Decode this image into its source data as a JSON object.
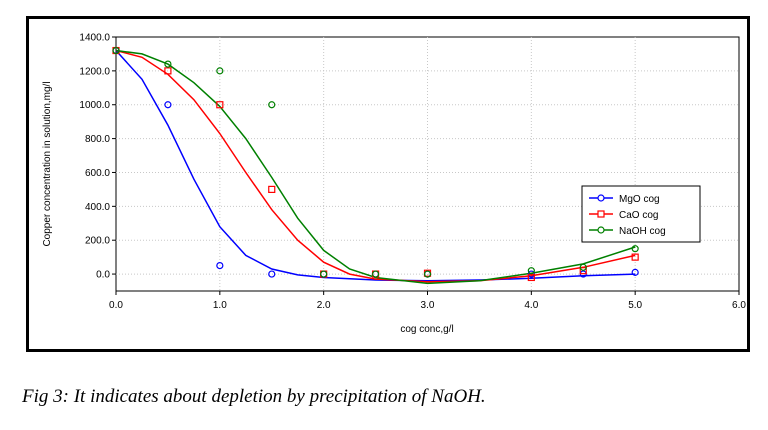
{
  "caption": "Fig  3: It indicates about depletion by precipitation of NaOH.",
  "chart_data": {
    "type": "scatter",
    "xlabel": "cog conc,g/l",
    "ylabel": "Copper concentration in solution,mg/l",
    "xlim": [
      0,
      6
    ],
    "ylim": [
      -100,
      1400
    ],
    "xticks": [
      "0.0",
      "1.0",
      "2.0",
      "3.0",
      "4.0",
      "5.0",
      "6.0"
    ],
    "yticks": [
      "0.0",
      "200.0",
      "400.0",
      "600.0",
      "800.0",
      "1000.0",
      "1200.0",
      "1400.0"
    ],
    "grid": true,
    "legend_position": "right",
    "series": [
      {
        "name": "MgO cog",
        "color": "#0000ff",
        "marker": "circle",
        "points": [
          [
            0,
            1320
          ],
          [
            0.5,
            1000
          ],
          [
            1.0,
            50
          ],
          [
            1.5,
            0
          ],
          [
            2.0,
            0
          ],
          [
            2.5,
            0
          ],
          [
            3.0,
            0
          ],
          [
            4.0,
            0
          ],
          [
            4.5,
            0
          ],
          [
            5.0,
            10
          ]
        ],
        "fit": [
          [
            0,
            1320
          ],
          [
            0.25,
            1150
          ],
          [
            0.5,
            880
          ],
          [
            0.75,
            560
          ],
          [
            1.0,
            280
          ],
          [
            1.25,
            110
          ],
          [
            1.5,
            30
          ],
          [
            1.75,
            -5
          ],
          [
            2.0,
            -20
          ],
          [
            2.5,
            -35
          ],
          [
            3.0,
            -40
          ],
          [
            3.5,
            -35
          ],
          [
            4.0,
            -25
          ],
          [
            4.5,
            -10
          ],
          [
            5.0,
            0
          ]
        ]
      },
      {
        "name": "CaO cog",
        "color": "#ff0000",
        "marker": "square",
        "points": [
          [
            0,
            1320
          ],
          [
            0.5,
            1200
          ],
          [
            1.0,
            1000
          ],
          [
            1.5,
            500
          ],
          [
            2.0,
            0
          ],
          [
            2.5,
            0
          ],
          [
            3.0,
            5
          ],
          [
            4.0,
            -20
          ],
          [
            4.5,
            20
          ],
          [
            5.0,
            100
          ]
        ],
        "fit": [
          [
            0,
            1320
          ],
          [
            0.25,
            1280
          ],
          [
            0.5,
            1180
          ],
          [
            0.75,
            1030
          ],
          [
            1.0,
            830
          ],
          [
            1.25,
            600
          ],
          [
            1.5,
            380
          ],
          [
            1.75,
            200
          ],
          [
            2.0,
            70
          ],
          [
            2.25,
            0
          ],
          [
            2.5,
            -30
          ],
          [
            3.0,
            -45
          ],
          [
            3.5,
            -40
          ],
          [
            4.0,
            -10
          ],
          [
            4.5,
            40
          ],
          [
            5.0,
            110
          ]
        ]
      },
      {
        "name": "NaOH cog",
        "color": "#008000",
        "marker": "circle",
        "points": [
          [
            0,
            1320
          ],
          [
            0.5,
            1240
          ],
          [
            1.0,
            1200
          ],
          [
            1.5,
            1000
          ],
          [
            2.0,
            0
          ],
          [
            2.5,
            0
          ],
          [
            3.0,
            0
          ],
          [
            4.0,
            20
          ],
          [
            4.5,
            40
          ],
          [
            5.0,
            150
          ]
        ],
        "fit": [
          [
            0,
            1320
          ],
          [
            0.25,
            1300
          ],
          [
            0.5,
            1240
          ],
          [
            0.75,
            1130
          ],
          [
            1.0,
            990
          ],
          [
            1.25,
            800
          ],
          [
            1.5,
            570
          ],
          [
            1.75,
            330
          ],
          [
            2.0,
            140
          ],
          [
            2.25,
            30
          ],
          [
            2.5,
            -20
          ],
          [
            3.0,
            -55
          ],
          [
            3.5,
            -40
          ],
          [
            4.0,
            5
          ],
          [
            4.5,
            60
          ],
          [
            5.0,
            160
          ]
        ]
      }
    ]
  }
}
